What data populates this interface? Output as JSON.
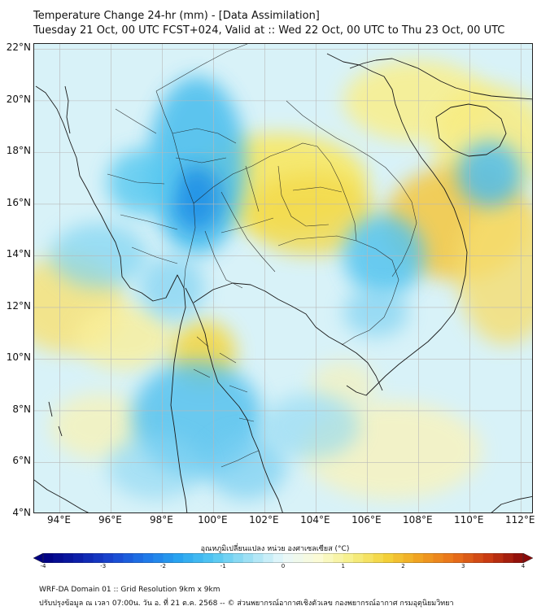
{
  "header": {
    "title": "Temperature Change 24-hr (mm) - [Data Assimilation]",
    "subtitle": "Tuesday 21 Oct, 00 UTC FCST+024, Valid at :: Wed 22 Oct, 00 UTC to Thu 23 Oct, 00 UTC"
  },
  "axes": {
    "lat_labels": [
      "22°N",
      "20°N",
      "18°N",
      "16°N",
      "14°N",
      "12°N",
      "10°N",
      "8°N",
      "6°N",
      "4°N"
    ],
    "lon_labels": [
      "94°E",
      "96°E",
      "98°E",
      "100°E",
      "102°E",
      "104°E",
      "106°E",
      "108°E",
      "110°E",
      "112°E"
    ],
    "lon_range": [
      93.0,
      112.5
    ],
    "lat_range": [
      4.0,
      22.2
    ]
  },
  "field": {
    "unit": "°C",
    "warm_areas": [
      "Northeast Thailand / Laos plateau",
      "South China / Hainan",
      "Central Vietnam coast & South China Sea",
      "Andaman Sea west",
      "Gulf of Thailand west coast"
    ],
    "cool_areas": [
      "Myanmar / Northern Thailand",
      "Cambodia",
      "Malay Peninsula",
      "Bay of Bengal east"
    ]
  },
  "colorbar": {
    "title": "อุณหภูมิเปลี่ยนแปลง หน่วย องศาเซลเซียส (°C)",
    "ticks": [
      "-4",
      "-3",
      "-2",
      "-1",
      "0",
      "1",
      "2",
      "3",
      "4"
    ],
    "min": -4,
    "max": 4,
    "colors": [
      "#000080",
      "#0d1ea8",
      "#1a46d0",
      "#1f78e8",
      "#2aa6f0",
      "#55c8f2",
      "#9fe0f4",
      "#e8f8fb",
      "#fbfbd8",
      "#f6f088",
      "#f3d23a",
      "#f0a020",
      "#e8701a",
      "#c83a12",
      "#8a0a0a"
    ]
  },
  "footer": {
    "line1": "WRF-DA Domain 01 :: Grid Resolution 9km x 9km",
    "line2": "ปรับปรุงข้อมูล ณ เวลา 07:00น. วัน อ. ที่ 21 ต.ค. 2568 -- © ส่วนพยากรณ์อากาศเชิงตัวเลข กองพยากรณ์อากาศ กรมอุตุนิยมวิทยา"
  }
}
